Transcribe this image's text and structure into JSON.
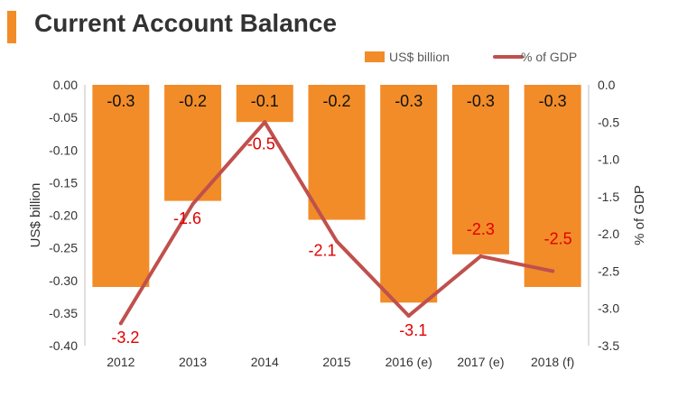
{
  "title": "Current Account Balance",
  "colors": {
    "accent": "#f28c28",
    "bar": "#f28c28",
    "line": "#c0504d",
    "line_label": "#e00000",
    "title_text": "#333333",
    "axis_text": "#333333"
  },
  "chart_data": {
    "type": "bar",
    "title": "Current Account Balance",
    "categories": [
      "2012",
      "2013",
      "2014",
      "2015",
      "2016 (e)",
      "2017 (e)",
      "2018 (f)"
    ],
    "series": [
      {
        "name": "US$ billion",
        "type": "bar",
        "axis": "left",
        "values": [
          -0.31,
          -0.178,
          -0.057,
          -0.207,
          -0.334,
          -0.26,
          -0.31
        ],
        "data_labels": [
          "-0.3",
          "-0.2",
          "-0.1",
          "-0.2",
          "-0.3",
          "-0.3",
          "-0.3"
        ]
      },
      {
        "name": "% of GDP",
        "type": "line",
        "axis": "right",
        "values": [
          -3.2,
          -1.6,
          -0.5,
          -2.1,
          -3.1,
          -2.3,
          -2.5
        ],
        "data_labels": [
          "-3.2",
          "-1.6",
          "-0.5",
          "-2.1",
          "-3.1",
          "-2.3",
          "-2.5"
        ]
      }
    ],
    "ylabel": "US$ billion",
    "y2label": "% of GDP",
    "ylim": [
      -0.4,
      0
    ],
    "y2lim": [
      -3.5,
      0
    ],
    "yticks": [
      "0.00",
      "-0.05",
      "-0.10",
      "-0.15",
      "-0.20",
      "-0.25",
      "-0.30",
      "-0.35",
      "-0.40"
    ],
    "y2ticks": [
      "0.0",
      "-0.5",
      "-1.0",
      "-1.5",
      "-2.0",
      "-2.5",
      "-3.0",
      "-3.5"
    ],
    "legend": "top-right",
    "grid": false
  }
}
